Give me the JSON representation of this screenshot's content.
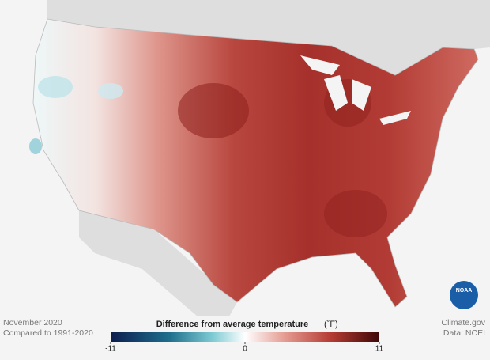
{
  "map": {
    "footer_left": {
      "line1": "November 2020",
      "line2": "Compared to 1991-2020"
    },
    "footer_right": {
      "line1": "Climate.gov",
      "line2": "Data: NCEI"
    },
    "logo": "NOAA",
    "legend": {
      "title": "Difference from average temperature",
      "unit": "(˚F)",
      "range": [
        -11,
        11
      ],
      "ticks": [
        -11,
        0,
        11
      ]
    }
  }
}
